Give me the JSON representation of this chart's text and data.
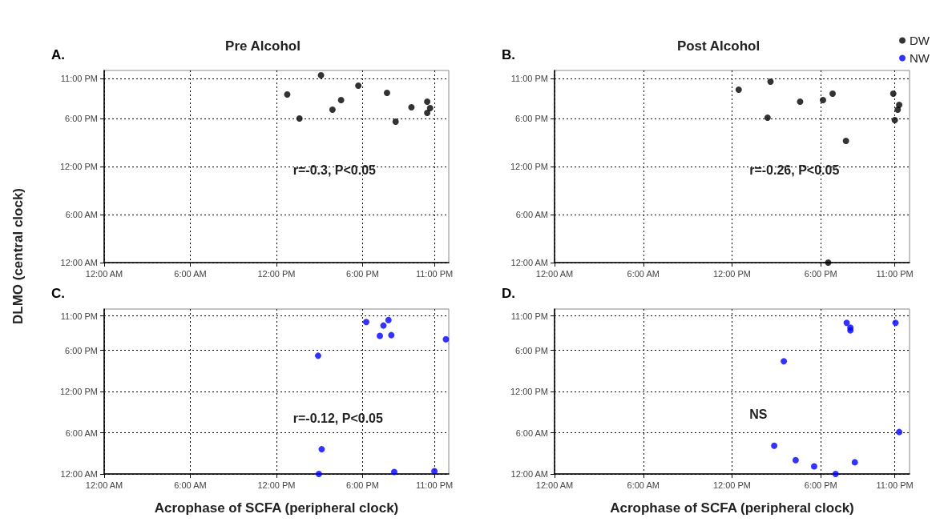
{
  "chart_data": [
    {
      "type": "scatter",
      "title": "Pre Alcohol",
      "ylabel": "DLMO (central clock)",
      "annotations": [
        "A.",
        "r=-0.3, P<0.05"
      ],
      "xlim": [
        0,
        24
      ],
      "ylim": [
        0,
        24
      ],
      "xticks": [
        {
          "value": 0,
          "label": "12:00 AM"
        },
        {
          "value": 6,
          "label": "6:00 AM"
        },
        {
          "value": 12,
          "label": "12:00 PM"
        },
        {
          "value": 18,
          "label": "6:00 PM"
        },
        {
          "value": 23,
          "label": "11:00 PM"
        }
      ],
      "yticks": [
        {
          "value": 0,
          "label": "12:00 AM"
        },
        {
          "value": 6,
          "label": "6:00 AM"
        },
        {
          "value": 12,
          "label": "12:00 PM"
        },
        {
          "value": 18,
          "label": "6:00 PM"
        },
        {
          "value": 23,
          "label": "11:00 PM"
        }
      ],
      "grid": true,
      "marker": "circle",
      "series": [
        {
          "color": "#000000",
          "x": [
            12.75,
            13.6,
            15.1,
            15.9,
            16.5,
            17.7,
            19.7,
            20.3,
            21.4,
            22.5,
            22.7,
            22.5
          ],
          "values": [
            21.0,
            18.0,
            23.4,
            19.1,
            20.3,
            22.1,
            21.2,
            17.6,
            19.4,
            20.1,
            19.3,
            18.7
          ]
        }
      ]
    },
    {
      "type": "scatter",
      "title": "Post Alcohol",
      "annotations": [
        "B.",
        "r=-0.26, P<0.05"
      ],
      "xlim": [
        0,
        24
      ],
      "ylim": [
        0,
        24
      ],
      "xticks": [
        {
          "value": 0,
          "label": "12:00 AM"
        },
        {
          "value": 6,
          "label": "6:00 AM"
        },
        {
          "value": 12,
          "label": "12:00 PM"
        },
        {
          "value": 18,
          "label": "6:00 PM"
        },
        {
          "value": 23,
          "label": "11:00 PM"
        }
      ],
      "yticks": [
        {
          "value": 0,
          "label": "12:00 AM"
        },
        {
          "value": 6,
          "label": "6:00 AM"
        },
        {
          "value": 12,
          "label": "12:00 PM"
        },
        {
          "value": 18,
          "label": "6:00 PM"
        },
        {
          "value": 23,
          "label": "11:00 PM"
        }
      ],
      "grid": true,
      "marker": "circle",
      "legend": "top right",
      "series": [
        {
          "name": "DW",
          "color": "#000000",
          "x": [
            12.45,
            14.6,
            14.4,
            16.6,
            18.15,
            18.8,
            19.7,
            18.5,
            22.9,
            23.3,
            23.2,
            23.0
          ],
          "values": [
            21.6,
            22.6,
            18.1,
            20.1,
            20.3,
            21.1,
            15.2,
            0,
            21.1,
            19.7,
            19.1,
            17.8
          ]
        }
      ]
    },
    {
      "type": "scatter",
      "xlabel": "Acrophase of SCFA (peripheral clock)",
      "annotations": [
        "C.",
        "r=-0.12, P<0.05"
      ],
      "xlim": [
        0,
        24
      ],
      "ylim": [
        0,
        24
      ],
      "xticks": [
        {
          "value": 0,
          "label": "12:00 AM"
        },
        {
          "value": 6,
          "label": "6:00 AM"
        },
        {
          "value": 12,
          "label": "12:00 PM"
        },
        {
          "value": 18,
          "label": "6:00 PM"
        },
        {
          "value": 23,
          "label": "11:00 PM"
        }
      ],
      "yticks": [
        {
          "value": 0,
          "label": "12:00 AM"
        },
        {
          "value": 6,
          "label": "6:00 AM"
        },
        {
          "value": 12,
          "label": "12:00 PM"
        },
        {
          "value": 18,
          "label": "6:00 PM"
        },
        {
          "value": 23,
          "label": "11:00 PM"
        }
      ],
      "grid": true,
      "marker": "circle",
      "series": [
        {
          "color": "#0000ff",
          "x": [
            18.25,
            19.8,
            19.45,
            19.2,
            20.0,
            23.8,
            14.9,
            15.15,
            14.95,
            20.2,
            23.0
          ],
          "values": [
            22.1,
            22.4,
            21.6,
            20.1,
            20.2,
            19.6,
            17.2,
            3.6,
            0,
            0.3,
            0.4
          ]
        }
      ]
    },
    {
      "type": "scatter",
      "xlabel": "Acrophase of SCFA (peripheral clock)",
      "annotations": [
        "D.",
        "NS"
      ],
      "xlim": [
        0,
        24
      ],
      "ylim": [
        0,
        24
      ],
      "xticks": [
        {
          "value": 0,
          "label": "12:00 AM"
        },
        {
          "value": 6,
          "label": "6:00 AM"
        },
        {
          "value": 12,
          "label": "12:00 PM"
        },
        {
          "value": 18,
          "label": "6:00 PM"
        },
        {
          "value": 23,
          "label": "11:00 PM"
        }
      ],
      "yticks": [
        {
          "value": 0,
          "label": "12:00 AM"
        },
        {
          "value": 6,
          "label": "6:00 AM"
        },
        {
          "value": 12,
          "label": "12:00 PM"
        },
        {
          "value": 18,
          "label": "6:00 PM"
        },
        {
          "value": 23,
          "label": "11:00 PM"
        }
      ],
      "grid": true,
      "marker": "circle",
      "legend": "top right",
      "series": [
        {
          "name": "NW",
          "color": "#0000ff",
          "x": [
            19.75,
            20.0,
            20.0,
            23.05,
            15.5,
            23.3,
            14.85,
            16.3,
            17.55,
            19.0,
            20.3
          ],
          "values": [
            22.0,
            21.3,
            20.9,
            22.0,
            16.4,
            6.1,
            4.1,
            2.0,
            1.1,
            0,
            1.7
          ]
        }
      ]
    }
  ]
}
